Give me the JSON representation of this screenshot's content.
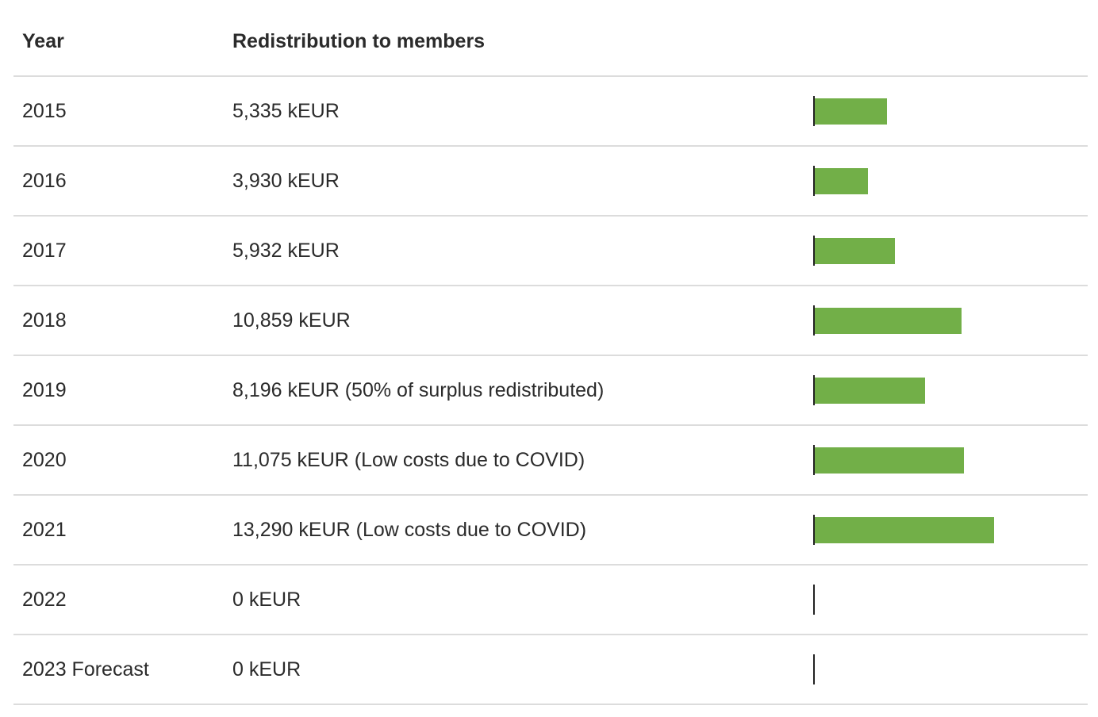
{
  "table": {
    "headers": {
      "year": "Year",
      "redistribution": "Redistribution to members"
    }
  },
  "chart_data": {
    "type": "bar",
    "orientation": "horizontal",
    "categories": [
      "2015",
      "2016",
      "2017",
      "2018",
      "2019",
      "2020",
      "2021",
      "2022",
      "2023 Forecast"
    ],
    "values": [
      5335,
      3930,
      5932,
      10859,
      8196,
      11075,
      13290,
      0,
      0
    ],
    "unit": "kEUR",
    "labels": [
      "5,335 kEUR",
      "3,930 kEUR",
      "5,932 kEUR",
      "10,859 kEUR",
      "8,196 kEUR (50% of surplus redistributed)",
      "11,075 kEUR (Low costs due to COVID)",
      "13,290 kEUR (Low costs due to COVID)",
      "0 kEUR",
      "0 kEUR"
    ],
    "bar_color": "#72af48",
    "axis_color": "#222222",
    "xlim": [
      0,
      20000
    ],
    "grid": false,
    "legend": "none"
  }
}
